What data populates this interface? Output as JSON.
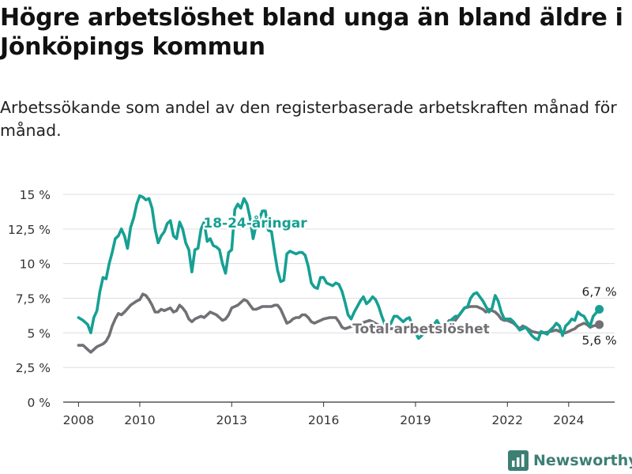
{
  "brand": {
    "name": "Newsworthy",
    "color": "#3d7f74"
  },
  "chart_data": {
    "type": "line",
    "title": "Högre arbetslöshet bland unga än bland äldre i Jönköpings kommun",
    "subtitle": "Arbetssökande som andel av den registerbaserade arbetskraften månad för månad.",
    "xlabel": "",
    "ylabel": "",
    "xlim": [
      2007.5,
      2025.5
    ],
    "ylim": [
      0,
      15
    ],
    "x_ticks": [
      {
        "value": 2008,
        "label": "2008"
      },
      {
        "value": 2010,
        "label": "2010"
      },
      {
        "value": 2013,
        "label": "2013"
      },
      {
        "value": 2016,
        "label": "2016"
      },
      {
        "value": 2019,
        "label": "2019"
      },
      {
        "value": 2022,
        "label": "2022"
      },
      {
        "value": 2024,
        "label": "2024"
      }
    ],
    "y_ticks": [
      {
        "value": 0,
        "label": "0 %"
      },
      {
        "value": 2.5,
        "label": "2,5 %"
      },
      {
        "value": 5,
        "label": "5 %"
      },
      {
        "value": 7.5,
        "label": "7,5 %"
      },
      {
        "value": 10,
        "label": "10 %"
      },
      {
        "value": 12.5,
        "label": "12,5 %"
      },
      {
        "value": 15,
        "label": "15 %"
      }
    ],
    "grid": true,
    "legend": "inline labels",
    "series": [
      {
        "name": "18-24-åringar",
        "color": "#16a093",
        "end_label": "6,7 %",
        "points": [
          [
            2008.0,
            6.1
          ],
          [
            2008.15,
            5.9
          ],
          [
            2008.3,
            5.6
          ],
          [
            2008.4,
            5.0
          ],
          [
            2008.5,
            6.1
          ],
          [
            2008.6,
            6.6
          ],
          [
            2008.7,
            8.0
          ],
          [
            2008.8,
            9.0
          ],
          [
            2008.9,
            8.9
          ],
          [
            2009.0,
            10.0
          ],
          [
            2009.1,
            10.8
          ],
          [
            2009.2,
            11.8
          ],
          [
            2009.3,
            12.0
          ],
          [
            2009.4,
            12.5
          ],
          [
            2009.5,
            12.0
          ],
          [
            2009.6,
            11.1
          ],
          [
            2009.7,
            12.6
          ],
          [
            2009.8,
            13.3
          ],
          [
            2009.9,
            14.3
          ],
          [
            2010.0,
            14.9
          ],
          [
            2010.1,
            14.8
          ],
          [
            2010.2,
            14.6
          ],
          [
            2010.3,
            14.7
          ],
          [
            2010.4,
            14.0
          ],
          [
            2010.5,
            12.5
          ],
          [
            2010.6,
            11.5
          ],
          [
            2010.7,
            12.0
          ],
          [
            2010.8,
            12.3
          ],
          [
            2010.9,
            12.9
          ],
          [
            2011.0,
            13.1
          ],
          [
            2011.1,
            12.0
          ],
          [
            2011.2,
            11.8
          ],
          [
            2011.3,
            13.0
          ],
          [
            2011.4,
            12.5
          ],
          [
            2011.5,
            11.5
          ],
          [
            2011.6,
            11.0
          ],
          [
            2011.7,
            9.4
          ],
          [
            2011.8,
            11.0
          ],
          [
            2011.9,
            11.1
          ],
          [
            2012.0,
            12.5
          ],
          [
            2012.1,
            13.0
          ],
          [
            2012.2,
            11.6
          ],
          [
            2012.3,
            11.8
          ],
          [
            2012.4,
            11.3
          ],
          [
            2012.5,
            11.2
          ],
          [
            2012.6,
            11.0
          ],
          [
            2012.7,
            10.0
          ],
          [
            2012.8,
            9.3
          ],
          [
            2012.9,
            10.8
          ],
          [
            2013.0,
            11.0
          ],
          [
            2013.1,
            13.9
          ],
          [
            2013.2,
            14.3
          ],
          [
            2013.3,
            14.0
          ],
          [
            2013.4,
            14.7
          ],
          [
            2013.5,
            14.3
          ],
          [
            2013.6,
            13.3
          ],
          [
            2013.7,
            11.8
          ],
          [
            2013.8,
            12.8
          ],
          [
            2013.9,
            13.2
          ],
          [
            2014.0,
            13.8
          ],
          [
            2014.1,
            13.8
          ],
          [
            2014.2,
            12.4
          ],
          [
            2014.3,
            12.3
          ],
          [
            2014.4,
            10.8
          ],
          [
            2014.5,
            9.5
          ],
          [
            2014.6,
            8.7
          ],
          [
            2014.7,
            8.8
          ],
          [
            2014.8,
            10.7
          ],
          [
            2014.9,
            10.9
          ],
          [
            2015.0,
            10.8
          ],
          [
            2015.1,
            10.7
          ],
          [
            2015.2,
            10.8
          ],
          [
            2015.3,
            10.8
          ],
          [
            2015.4,
            10.6
          ],
          [
            2015.5,
            9.8
          ],
          [
            2015.6,
            8.6
          ],
          [
            2015.7,
            8.3
          ],
          [
            2015.8,
            8.2
          ],
          [
            2015.9,
            9.0
          ],
          [
            2016.0,
            9.0
          ],
          [
            2016.1,
            8.6
          ],
          [
            2016.2,
            8.5
          ],
          [
            2016.3,
            8.4
          ],
          [
            2016.4,
            8.6
          ],
          [
            2016.5,
            8.5
          ],
          [
            2016.6,
            8.0
          ],
          [
            2016.7,
            7.2
          ],
          [
            2016.8,
            6.3
          ],
          [
            2016.9,
            6.0
          ],
          [
            2017.0,
            6.5
          ],
          [
            2017.1,
            6.9
          ],
          [
            2017.2,
            7.3
          ],
          [
            2017.3,
            7.6
          ],
          [
            2017.4,
            7.1
          ],
          [
            2017.5,
            7.3
          ],
          [
            2017.6,
            7.6
          ],
          [
            2017.7,
            7.4
          ],
          [
            2017.8,
            6.9
          ],
          [
            2017.9,
            6.2
          ],
          [
            2018.0,
            5.6
          ],
          [
            2018.1,
            5.5
          ],
          [
            2018.2,
            5.7
          ],
          [
            2018.3,
            6.2
          ],
          [
            2018.4,
            6.2
          ],
          [
            2018.5,
            6.0
          ],
          [
            2018.6,
            5.8
          ],
          [
            2018.7,
            6.0
          ],
          [
            2018.8,
            6.1
          ],
          [
            2018.9,
            5.5
          ],
          [
            2019.0,
            5.0
          ],
          [
            2019.1,
            4.6
          ],
          [
            2019.2,
            4.8
          ],
          [
            2019.3,
            5.0
          ],
          [
            2019.4,
            5.2
          ],
          [
            2019.5,
            5.4
          ],
          [
            2019.6,
            5.6
          ],
          [
            2019.7,
            5.9
          ],
          [
            2019.8,
            5.5
          ],
          [
            2019.9,
            5.5
          ],
          [
            2020.0,
            5.6
          ],
          [
            2020.1,
            5.8
          ],
          [
            2020.2,
            6.0
          ],
          [
            2020.3,
            6.2
          ],
          [
            2020.4,
            6.2
          ],
          [
            2020.5,
            6.5
          ],
          [
            2020.6,
            6.8
          ],
          [
            2020.7,
            6.9
          ],
          [
            2020.8,
            7.5
          ],
          [
            2020.9,
            7.8
          ],
          [
            2021.0,
            7.9
          ],
          [
            2021.1,
            7.6
          ],
          [
            2021.2,
            7.3
          ],
          [
            2021.3,
            6.9
          ],
          [
            2021.4,
            6.5
          ],
          [
            2021.5,
            6.8
          ],
          [
            2021.6,
            7.7
          ],
          [
            2021.7,
            7.3
          ],
          [
            2021.8,
            6.5
          ],
          [
            2021.9,
            6.0
          ],
          [
            2022.0,
            6.0
          ],
          [
            2022.1,
            6.0
          ],
          [
            2022.2,
            5.8
          ],
          [
            2022.3,
            5.5
          ],
          [
            2022.4,
            5.2
          ],
          [
            2022.5,
            5.3
          ],
          [
            2022.6,
            5.4
          ],
          [
            2022.7,
            5.1
          ],
          [
            2022.8,
            4.8
          ],
          [
            2022.9,
            4.6
          ],
          [
            2023.0,
            4.5
          ],
          [
            2023.1,
            5.1
          ],
          [
            2023.2,
            5.0
          ],
          [
            2023.3,
            4.9
          ],
          [
            2023.4,
            5.2
          ],
          [
            2023.5,
            5.4
          ],
          [
            2023.6,
            5.7
          ],
          [
            2023.7,
            5.5
          ],
          [
            2023.8,
            4.8
          ],
          [
            2023.9,
            5.5
          ],
          [
            2024.0,
            5.7
          ],
          [
            2024.1,
            6.0
          ],
          [
            2024.2,
            5.9
          ],
          [
            2024.3,
            6.5
          ],
          [
            2024.4,
            6.3
          ],
          [
            2024.5,
            6.2
          ],
          [
            2024.6,
            5.8
          ],
          [
            2024.7,
            5.5
          ],
          [
            2024.8,
            6.2
          ],
          [
            2025.0,
            6.7
          ]
        ]
      },
      {
        "name": "Total arbetslöshet",
        "color": "#727075",
        "end_label": "5,6 %",
        "points": [
          [
            2008.0,
            4.1
          ],
          [
            2008.15,
            4.1
          ],
          [
            2008.3,
            3.8
          ],
          [
            2008.4,
            3.6
          ],
          [
            2008.5,
            3.8
          ],
          [
            2008.6,
            4.0
          ],
          [
            2008.8,
            4.2
          ],
          [
            2008.9,
            4.4
          ],
          [
            2009.0,
            4.8
          ],
          [
            2009.1,
            5.5
          ],
          [
            2009.2,
            6.0
          ],
          [
            2009.3,
            6.4
          ],
          [
            2009.4,
            6.3
          ],
          [
            2009.5,
            6.5
          ],
          [
            2009.7,
            7.0
          ],
          [
            2009.9,
            7.3
          ],
          [
            2010.0,
            7.4
          ],
          [
            2010.1,
            7.8
          ],
          [
            2010.2,
            7.7
          ],
          [
            2010.3,
            7.4
          ],
          [
            2010.4,
            7.0
          ],
          [
            2010.5,
            6.5
          ],
          [
            2010.6,
            6.5
          ],
          [
            2010.7,
            6.7
          ],
          [
            2010.8,
            6.6
          ],
          [
            2010.9,
            6.7
          ],
          [
            2011.0,
            6.8
          ],
          [
            2011.1,
            6.5
          ],
          [
            2011.2,
            6.6
          ],
          [
            2011.3,
            7.0
          ],
          [
            2011.4,
            6.8
          ],
          [
            2011.5,
            6.5
          ],
          [
            2011.6,
            6.0
          ],
          [
            2011.7,
            5.8
          ],
          [
            2011.8,
            6.0
          ],
          [
            2011.9,
            6.1
          ],
          [
            2012.0,
            6.2
          ],
          [
            2012.1,
            6.1
          ],
          [
            2012.2,
            6.3
          ],
          [
            2012.3,
            6.5
          ],
          [
            2012.4,
            6.4
          ],
          [
            2012.5,
            6.3
          ],
          [
            2012.6,
            6.1
          ],
          [
            2012.7,
            5.9
          ],
          [
            2012.8,
            6.0
          ],
          [
            2012.9,
            6.3
          ],
          [
            2013.0,
            6.8
          ],
          [
            2013.1,
            6.9
          ],
          [
            2013.2,
            7.0
          ],
          [
            2013.3,
            7.2
          ],
          [
            2013.4,
            7.4
          ],
          [
            2013.5,
            7.3
          ],
          [
            2013.6,
            7.0
          ],
          [
            2013.7,
            6.7
          ],
          [
            2013.8,
            6.7
          ],
          [
            2013.9,
            6.8
          ],
          [
            2014.0,
            6.9
          ],
          [
            2014.2,
            6.9
          ],
          [
            2014.3,
            6.9
          ],
          [
            2014.4,
            7.0
          ],
          [
            2014.5,
            7.0
          ],
          [
            2014.6,
            6.7
          ],
          [
            2014.7,
            6.2
          ],
          [
            2014.8,
            5.7
          ],
          [
            2014.9,
            5.8
          ],
          [
            2015.0,
            6.0
          ],
          [
            2015.1,
            6.1
          ],
          [
            2015.2,
            6.1
          ],
          [
            2015.3,
            6.3
          ],
          [
            2015.4,
            6.3
          ],
          [
            2015.5,
            6.1
          ],
          [
            2015.6,
            5.8
          ],
          [
            2015.7,
            5.7
          ],
          [
            2015.8,
            5.8
          ],
          [
            2015.9,
            5.9
          ],
          [
            2016.0,
            6.0
          ],
          [
            2016.2,
            6.1
          ],
          [
            2016.4,
            6.1
          ],
          [
            2016.5,
            5.8
          ],
          [
            2016.6,
            5.4
          ],
          [
            2016.7,
            5.3
          ],
          [
            2017.5,
            5.9
          ],
          [
            2017.6,
            5.8
          ],
          [
            2018.0,
            5.3
          ],
          [
            2018.3,
            5.3
          ],
          [
            2019.8,
            5.3
          ],
          [
            2020.0,
            5.6
          ],
          [
            2020.1,
            5.9
          ],
          [
            2020.2,
            5.8
          ],
          [
            2020.3,
            5.9
          ],
          [
            2020.4,
            6.2
          ],
          [
            2020.5,
            6.5
          ],
          [
            2020.6,
            6.8
          ],
          [
            2020.8,
            6.9
          ],
          [
            2020.9,
            6.9
          ],
          [
            2021.0,
            6.9
          ],
          [
            2021.1,
            6.8
          ],
          [
            2021.2,
            6.7
          ],
          [
            2021.3,
            6.5
          ],
          [
            2021.4,
            6.7
          ],
          [
            2021.5,
            6.6
          ],
          [
            2021.6,
            6.5
          ],
          [
            2021.7,
            6.3
          ],
          [
            2021.8,
            6.0
          ],
          [
            2021.9,
            5.9
          ],
          [
            2022.0,
            5.9
          ],
          [
            2022.2,
            5.7
          ],
          [
            2022.3,
            5.5
          ],
          [
            2022.4,
            5.3
          ],
          [
            2022.5,
            5.5
          ],
          [
            2022.6,
            5.4
          ],
          [
            2022.8,
            5.1
          ],
          [
            2023.0,
            5.0
          ],
          [
            2023.2,
            5.0
          ],
          [
            2023.4,
            5.1
          ],
          [
            2023.6,
            5.2
          ],
          [
            2023.8,
            5.0
          ],
          [
            2023.9,
            5.0
          ],
          [
            2024.0,
            5.1
          ],
          [
            2024.1,
            5.2
          ],
          [
            2024.2,
            5.3
          ],
          [
            2024.3,
            5.5
          ],
          [
            2024.5,
            5.7
          ],
          [
            2024.6,
            5.6
          ],
          [
            2024.7,
            5.4
          ],
          [
            2024.8,
            5.5
          ],
          [
            2025.0,
            5.6
          ]
        ]
      }
    ]
  }
}
